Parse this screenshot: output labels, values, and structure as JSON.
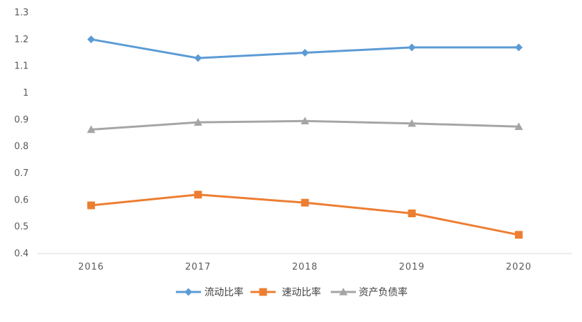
{
  "chart_data": {
    "type": "line",
    "categories": [
      "2016",
      "2017",
      "2018",
      "2019",
      "2020"
    ],
    "series": [
      {
        "name": "流动比率",
        "values": [
          1.2,
          1.13,
          1.15,
          1.17,
          1.17
        ],
        "color": "#5B9BD5",
        "marker": "diamond"
      },
      {
        "name": "速动比率",
        "values": [
          0.58,
          0.62,
          0.59,
          0.55,
          0.47
        ],
        "color": "#ED7D31",
        "marker": "square"
      },
      {
        "name": "资产负债率",
        "values": [
          0.863,
          0.89,
          0.895,
          0.886,
          0.874
        ],
        "color": "#A5A5A5",
        "marker": "triangle"
      }
    ],
    "ylim": [
      0.4,
      1.3
    ],
    "yticks": [
      "1.3",
      "1.2",
      "1.1",
      "1",
      "0.9",
      "0.8",
      "0.7",
      "0.6",
      "0.5",
      "0.4"
    ],
    "grid": false,
    "legend_position": "bottom"
  }
}
